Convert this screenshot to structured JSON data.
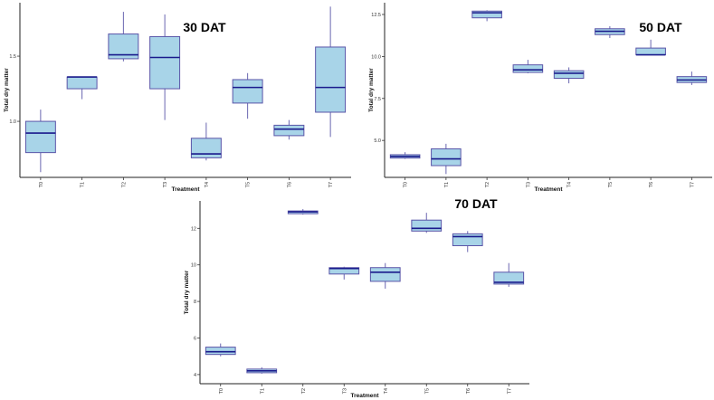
{
  "style": {
    "box_fill": "#a8d4e8",
    "box_stroke": "#5a55a8",
    "median_color": "#1a1a8c",
    "whisker_color": "#6a66b0"
  },
  "chart_data": [
    {
      "type": "boxplot",
      "title": "30 DAT",
      "xlabel": "Treatment",
      "ylabel": "Total dry matter",
      "ylim": [
        0.57,
        1.91
      ],
      "yticks": [
        "1.0",
        "1.5"
      ],
      "ytick_values": [
        1.0,
        1.5
      ],
      "categories": [
        "T0",
        "T1",
        "T2",
        "T3",
        "T4",
        "T5",
        "T6",
        "T7"
      ],
      "boxes": [
        {
          "category": "T0",
          "whisker_low": 0.61,
          "q1": 0.76,
          "median": 0.91,
          "q3": 1.0,
          "whisker_high": 1.09
        },
        {
          "category": "T1",
          "whisker_low": 1.17,
          "q1": 1.25,
          "median": 1.34,
          "q3": 1.34,
          "whisker_high": 1.34
        },
        {
          "category": "T2",
          "whisker_low": 1.46,
          "q1": 1.48,
          "median": 1.51,
          "q3": 1.67,
          "whisker_high": 1.84
        },
        {
          "category": "T3",
          "whisker_low": 1.01,
          "q1": 1.25,
          "median": 1.49,
          "q3": 1.65,
          "whisker_high": 1.82
        },
        {
          "category": "T4",
          "whisker_low": 0.7,
          "q1": 0.72,
          "median": 0.75,
          "q3": 0.87,
          "whisker_high": 0.99
        },
        {
          "category": "T5",
          "whisker_low": 1.02,
          "q1": 1.14,
          "median": 1.26,
          "q3": 1.32,
          "whisker_high": 1.37
        },
        {
          "category": "T6",
          "whisker_low": 0.86,
          "q1": 0.89,
          "median": 0.94,
          "q3": 0.97,
          "whisker_high": 1.01
        },
        {
          "category": "T7",
          "whisker_low": 0.88,
          "q1": 1.07,
          "median": 1.26,
          "q3": 1.57,
          "whisker_high": 1.88
        }
      ]
    },
    {
      "type": "boxplot",
      "title": "50 DAT",
      "xlabel": "Treatment",
      "ylabel": "Total dry matter",
      "ylim": [
        2.8,
        13.2
      ],
      "yticks": [
        "5.0",
        "7.5",
        "10.0",
        "12.5"
      ],
      "ytick_values": [
        5.0,
        7.5,
        10.0,
        12.5
      ],
      "categories": [
        "T0",
        "T1",
        "T2",
        "T3",
        "T4",
        "T5",
        "T6",
        "T7"
      ],
      "boxes": [
        {
          "category": "T0",
          "whisker_low": 3.9,
          "q1": 3.95,
          "median": 4.05,
          "q3": 4.15,
          "whisker_high": 4.3
        },
        {
          "category": "T1",
          "whisker_low": 3.0,
          "q1": 3.5,
          "median": 3.9,
          "q3": 4.5,
          "whisker_high": 4.8
        },
        {
          "category": "T2",
          "whisker_low": 12.1,
          "q1": 12.3,
          "median": 12.6,
          "q3": 12.7,
          "whisker_high": 12.75
        },
        {
          "category": "T3",
          "whisker_low": 9.0,
          "q1": 9.05,
          "median": 9.2,
          "q3": 9.5,
          "whisker_high": 9.8
        },
        {
          "category": "T4",
          "whisker_low": 8.4,
          "q1": 8.7,
          "median": 9.0,
          "q3": 9.15,
          "whisker_high": 9.35
        },
        {
          "category": "T5",
          "whisker_low": 11.1,
          "q1": 11.3,
          "median": 11.5,
          "q3": 11.65,
          "whisker_high": 11.8
        },
        {
          "category": "T6",
          "whisker_low": 10.1,
          "q1": 10.1,
          "median": 10.1,
          "q3": 10.5,
          "whisker_high": 11.0
        },
        {
          "category": "T7",
          "whisker_low": 8.3,
          "q1": 8.45,
          "median": 8.6,
          "q3": 8.8,
          "whisker_high": 9.1
        }
      ]
    },
    {
      "type": "boxplot",
      "title": "70 DAT",
      "xlabel": "Treatment",
      "ylabel": "Total dry matter",
      "ylim": [
        3.5,
        13.5
      ],
      "yticks": [
        "4",
        "6",
        "8",
        "10",
        "12"
      ],
      "ytick_values": [
        4,
        6,
        8,
        10,
        12
      ],
      "categories": [
        "T0",
        "T1",
        "T2",
        "T3",
        "T4",
        "T5",
        "T6",
        "T7"
      ],
      "boxes": [
        {
          "category": "T0",
          "whisker_low": 5.0,
          "q1": 5.1,
          "median": 5.25,
          "q3": 5.5,
          "whisker_high": 5.7
        },
        {
          "category": "T1",
          "whisker_low": 4.05,
          "q1": 4.1,
          "median": 4.2,
          "q3": 4.3,
          "whisker_high": 4.4
        },
        {
          "category": "T2",
          "whisker_low": 12.75,
          "q1": 12.8,
          "median": 12.9,
          "q3": 12.95,
          "whisker_high": 13.05
        },
        {
          "category": "T3",
          "whisker_low": 9.2,
          "q1": 9.5,
          "median": 9.8,
          "q3": 9.85,
          "whisker_high": 9.9
        },
        {
          "category": "T4",
          "whisker_low": 8.7,
          "q1": 9.1,
          "median": 9.6,
          "q3": 9.85,
          "whisker_high": 10.1
        },
        {
          "category": "T5",
          "whisker_low": 11.75,
          "q1": 11.85,
          "median": 12.0,
          "q3": 12.45,
          "whisker_high": 12.85
        },
        {
          "category": "T6",
          "whisker_low": 10.7,
          "q1": 11.05,
          "median": 11.55,
          "q3": 11.7,
          "whisker_high": 11.85
        },
        {
          "category": "T7",
          "whisker_low": 8.8,
          "q1": 8.95,
          "median": 9.05,
          "q3": 9.6,
          "whisker_high": 10.1
        }
      ]
    }
  ]
}
